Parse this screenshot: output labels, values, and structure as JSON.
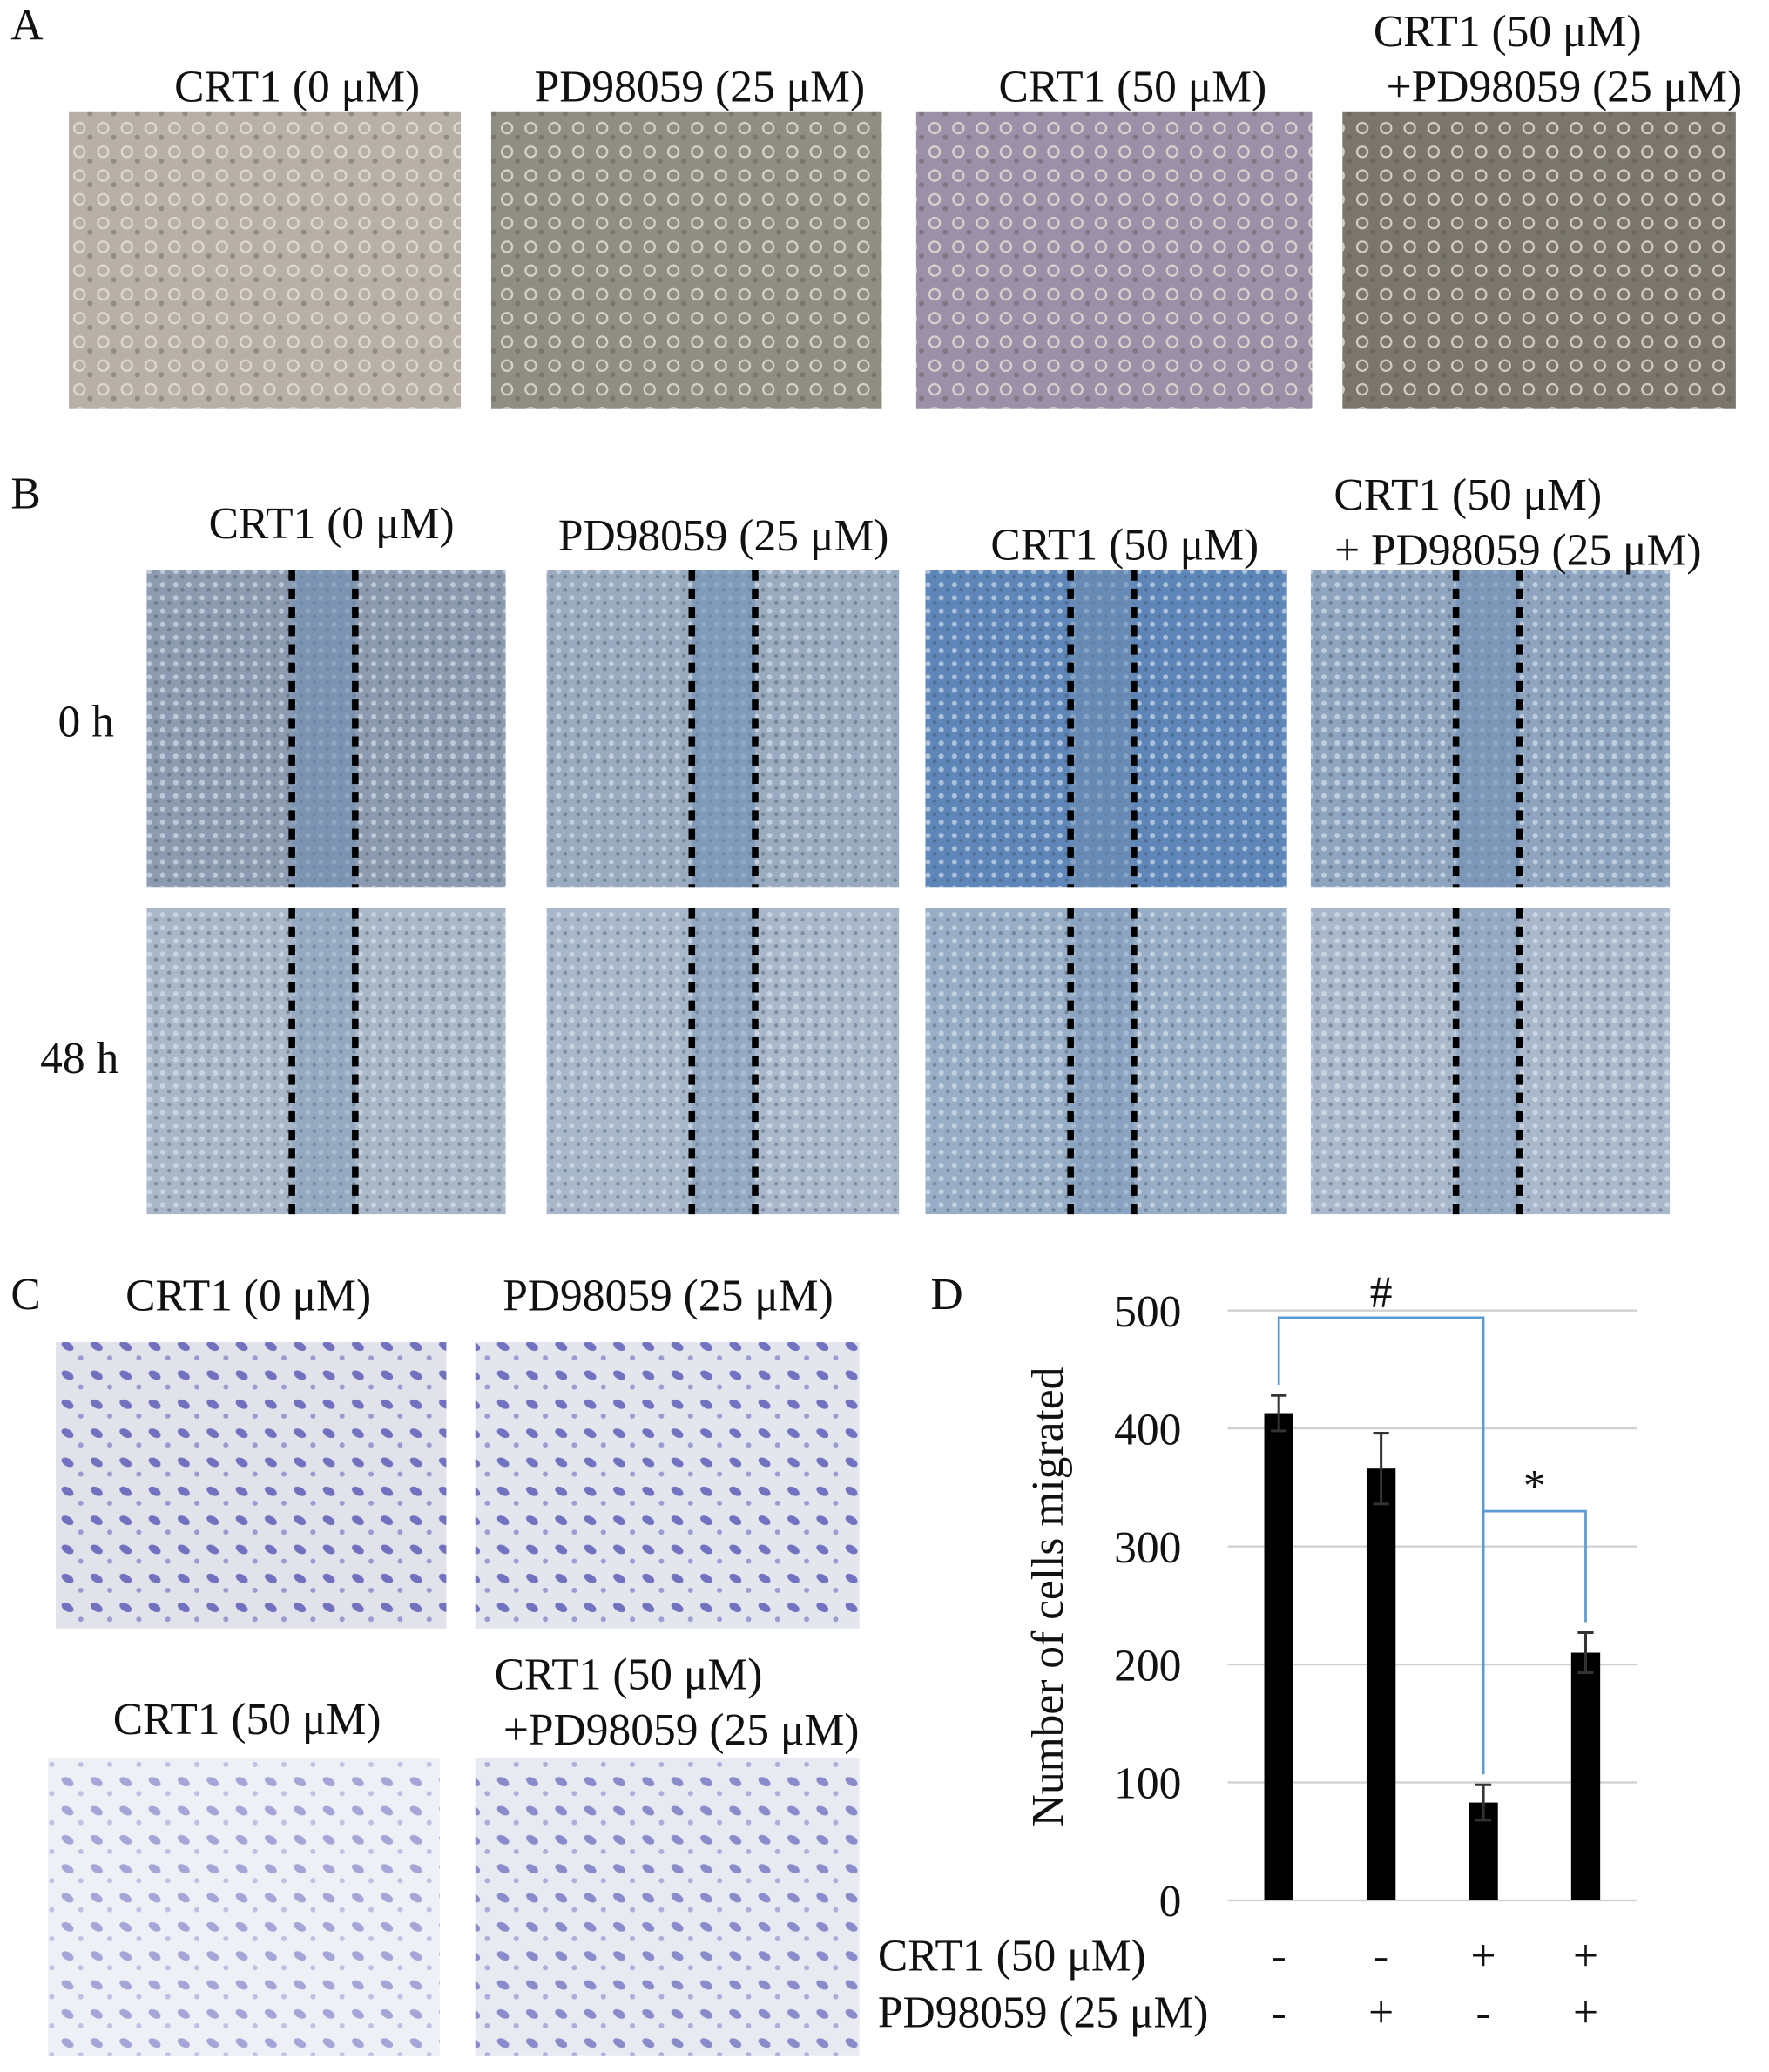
{
  "panel_a": {
    "label": "A",
    "captions": [
      [
        "CRT1 (0 μM)"
      ],
      [
        "PD98059 (25 μM)"
      ],
      [
        "CRT1 (50 μM)"
      ],
      [
        "CRT1 (50 μM)",
        "+PD98059 (25 μM)"
      ]
    ]
  },
  "panel_b": {
    "label": "B",
    "captions": [
      [
        "CRT1 (0 μM)"
      ],
      [
        "PD98059 (25 μM)"
      ],
      [
        "CRT1 (50 μM)"
      ],
      [
        "CRT1 (50 μM)",
        "+ PD98059 (25 μM)"
      ]
    ],
    "rows": [
      "0 h",
      "48 h"
    ]
  },
  "panel_c": {
    "label": "C",
    "captions": [
      [
        "CRT1 (0 μM)"
      ],
      [
        "PD98059 (25 μM)"
      ],
      [
        "CRT1 (50 μM)"
      ],
      [
        "CRT1 (50 μM)",
        "+PD98059 (25 μM)"
      ]
    ]
  },
  "chart_data": {
    "type": "bar",
    "label": "D",
    "ylabel": "Number of cells migrated",
    "values": [
      413,
      366,
      83,
      210
    ],
    "errors": [
      15,
      30,
      15,
      17
    ],
    "color": "#000000",
    "ylim": [
      0,
      500
    ],
    "yticks": [
      0,
      100,
      200,
      300,
      400,
      500
    ],
    "grid": true,
    "conditions": [
      {
        "name": "CRT1 (50 μM)",
        "marks": [
          "-",
          "-",
          "+",
          "+"
        ]
      },
      {
        "name": "PD98059 (25 μM)",
        "marks": [
          "-",
          "+",
          "-",
          "+"
        ]
      }
    ],
    "brackets": [
      {
        "label": "#",
        "from": 0,
        "to": 2
      },
      {
        "label": "*",
        "from": 2,
        "to": 3
      }
    ]
  }
}
